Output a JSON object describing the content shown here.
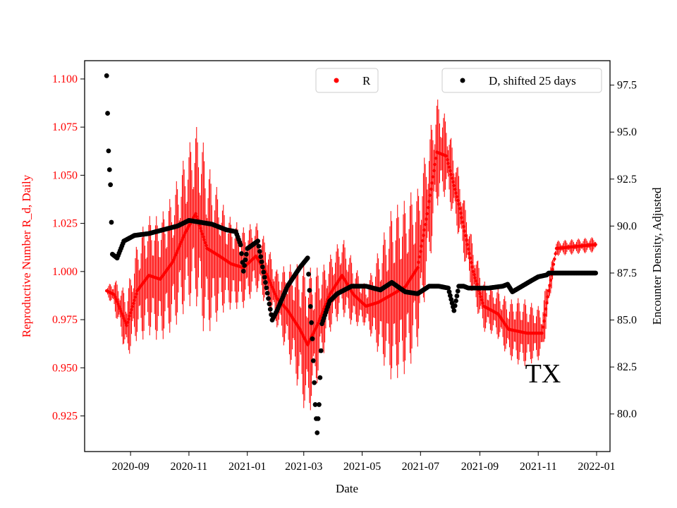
{
  "chart_data": {
    "type": "scatter",
    "title": "",
    "xlabel": "Date",
    "ylabel_left": "Reproductive Number R_d, Daily",
    "ylabel_right": "Encounter Density, Adjusted",
    "annotation": "TX",
    "colors": {
      "r_series": "#ff0000",
      "d_series": "#000000",
      "axes": "#000000"
    },
    "x_range": [
      "2020-07-15",
      "2022-01-15"
    ],
    "x_ticks": [
      "2020-09",
      "2020-11",
      "2021-01",
      "2021-03",
      "2021-05",
      "2021-07",
      "2021-09",
      "2021-11",
      "2022-01"
    ],
    "x_tick_dates": [
      "2020-09-01",
      "2020-11-01",
      "2021-01-01",
      "2021-03-01",
      "2021-05-01",
      "2021-07-01",
      "2021-09-01",
      "2021-11-01",
      "2022-01-01"
    ],
    "y_left_range": [
      0.9065,
      1.1095
    ],
    "y_left_ticks": [
      "0.925",
      "0.950",
      "0.975",
      "1.000",
      "1.025",
      "1.050",
      "1.075",
      "1.100"
    ],
    "y_left_tick_values": [
      0.925,
      0.95,
      0.975,
      1.0,
      1.025,
      1.05,
      1.075,
      1.1
    ],
    "y_right_range": [
      78.0,
      98.8
    ],
    "y_right_ticks": [
      "80.0",
      "82.5",
      "85.0",
      "87.5",
      "90.0",
      "92.5",
      "95.0",
      "97.5"
    ],
    "y_right_tick_values": [
      80.0,
      82.5,
      85.0,
      87.5,
      90.0,
      92.5,
      95.0,
      97.5
    ],
    "legend": [
      {
        "label": "R",
        "position": "top-center",
        "marker_color": "#ff0000"
      },
      {
        "label": "D, shifted 25 days",
        "position": "top-right",
        "marker_color": "#000000"
      }
    ],
    "series": [
      {
        "name": "R",
        "axis": "left",
        "marker": "dot-with-vertical-error-bars",
        "keypoints_x": [
          "2020-08-07",
          "2020-08-15",
          "2020-08-28",
          "2020-09-08",
          "2020-09-20",
          "2020-10-02",
          "2020-10-15",
          "2020-10-28",
          "2020-11-08",
          "2020-11-20",
          "2020-12-03",
          "2020-12-15",
          "2020-12-28",
          "2021-01-10",
          "2021-01-20",
          "2021-02-01",
          "2021-02-12",
          "2021-02-25",
          "2021-03-05",
          "2021-03-15",
          "2021-03-28",
          "2021-04-10",
          "2021-04-22",
          "2021-05-05",
          "2021-05-18",
          "2021-06-01",
          "2021-06-15",
          "2021-06-28",
          "2021-07-08",
          "2021-07-18",
          "2021-07-28",
          "2021-08-10",
          "2021-08-25",
          "2021-09-05",
          "2021-09-20",
          "2021-10-01",
          "2021-10-20",
          "2021-11-05",
          "2021-11-12",
          "2021-11-20",
          "2021-12-31"
        ],
        "keypoints_y": [
          0.99,
          0.988,
          0.972,
          0.99,
          0.998,
          0.996,
          1.005,
          1.02,
          1.03,
          1.012,
          1.008,
          1.004,
          1.002,
          1.008,
          1.0,
          0.986,
          0.98,
          0.97,
          0.962,
          0.972,
          0.988,
          0.998,
          0.988,
          0.982,
          0.984,
          0.988,
          0.992,
          1.002,
          1.03,
          1.062,
          1.06,
          1.035,
          1.0,
          0.982,
          0.978,
          0.97,
          0.968,
          0.968,
          0.99,
          1.012,
          1.014
        ],
        "error_amplitude_keypoints_x": [
          "2020-08-07",
          "2020-08-20",
          "2020-09-15",
          "2020-10-10",
          "2020-11-01",
          "2020-11-15",
          "2020-12-10",
          "2021-01-10",
          "2021-02-01",
          "2021-02-20",
          "2021-03-05",
          "2021-03-25",
          "2021-04-15",
          "2021-05-05",
          "2021-06-01",
          "2021-06-20",
          "2021-07-10",
          "2021-07-28",
          "2021-08-20",
          "2021-09-15",
          "2021-10-15",
          "2021-11-10",
          "2021-11-18",
          "2021-11-22",
          "2021-12-31"
        ],
        "error_amplitude_keypoints": [
          0.002,
          0.012,
          0.03,
          0.034,
          0.042,
          0.05,
          0.025,
          0.018,
          0.015,
          0.03,
          0.04,
          0.02,
          0.02,
          0.01,
          0.045,
          0.045,
          0.035,
          0.02,
          0.015,
          0.012,
          0.018,
          0.012,
          0.004,
          0.004,
          0.004
        ]
      },
      {
        "name": "D, shifted 25 days",
        "axis": "right",
        "marker": "dot",
        "keypoints_x": [
          "2020-08-07",
          "2020-08-08",
          "2020-08-09",
          "2020-08-10",
          "2020-08-11",
          "2020-08-12",
          "2020-08-13",
          "2020-08-18",
          "2020-08-25",
          "2020-09-05",
          "2020-09-20",
          "2020-10-05",
          "2020-10-20",
          "2020-11-01",
          "2020-11-25",
          "2020-12-10",
          "2020-12-20",
          "2020-12-25",
          "2020-12-28",
          "2021-01-01",
          "2021-01-12",
          "2021-01-20",
          "2021-01-27",
          "2021-02-01",
          "2021-02-12",
          "2021-02-25",
          "2021-03-05",
          "2021-03-10",
          "2021-03-13",
          "2021-03-15",
          "2021-03-17",
          "2021-03-20",
          "2021-03-28",
          "2021-04-05",
          "2021-04-20",
          "2021-05-05",
          "2021-05-20",
          "2021-06-01",
          "2021-06-15",
          "2021-06-28",
          "2021-07-10",
          "2021-07-20",
          "2021-07-30",
          "2021-08-05",
          "2021-08-10",
          "2021-08-15",
          "2021-08-20",
          "2021-09-10",
          "2021-09-25",
          "2021-09-30",
          "2021-10-05",
          "2021-10-15",
          "2021-10-25",
          "2021-11-01",
          "2021-11-10",
          "2021-11-12",
          "2021-11-20",
          "2021-12-31"
        ],
        "keypoints_y": [
          98.0,
          96.0,
          94.0,
          93.0,
          92.2,
          90.2,
          88.5,
          88.3,
          89.2,
          89.5,
          89.6,
          89.8,
          90.0,
          90.3,
          90.1,
          89.8,
          89.7,
          89.0,
          87.6,
          88.8,
          89.2,
          87.0,
          85.0,
          85.5,
          86.8,
          87.8,
          88.3,
          84.0,
          80.5,
          79.0,
          80.5,
          84.8,
          86.0,
          86.4,
          86.8,
          86.8,
          86.6,
          87.0,
          86.5,
          86.4,
          86.8,
          86.8,
          86.7,
          85.5,
          86.8,
          86.8,
          86.7,
          86.7,
          86.8,
          86.9,
          86.5,
          86.8,
          87.1,
          87.3,
          87.4,
          87.5,
          87.5,
          87.5
        ]
      }
    ]
  }
}
